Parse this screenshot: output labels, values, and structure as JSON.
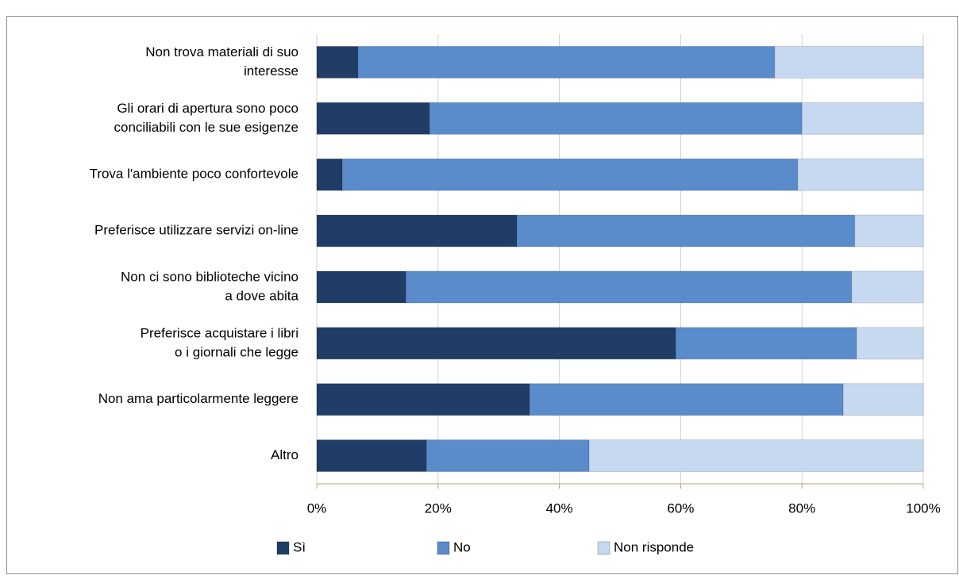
{
  "chart_data": {
    "type": "stacked-bar-horizontal",
    "categories": [
      [
        "Non trova materiali di suo",
        "interesse"
      ],
      [
        "Gli orari di apertura sono poco",
        "conciliabili con le sue esigenze"
      ],
      [
        "Trova l'ambiente poco confortevole"
      ],
      [
        "Preferisce utilizzare servizi on-line"
      ],
      [
        "Non ci sono biblioteche vicino",
        "a dove abita"
      ],
      [
        "Preferisce acquistare i libri",
        "o i giornali che legge"
      ],
      [
        "Non ama particolarmente leggere"
      ],
      [
        "Altro"
      ]
    ],
    "series": [
      {
        "name": "Sì",
        "color": "#1f3d66",
        "values": [
          6.8,
          18.6,
          4.2,
          33.0,
          14.7,
          59.2,
          35.1,
          18.1
        ]
      },
      {
        "name": "No",
        "color": "#5a8bcb",
        "values": [
          68.7,
          61.4,
          75.1,
          55.7,
          73.5,
          29.8,
          51.7,
          26.8
        ]
      },
      {
        "name": "Non risponde",
        "color": "#c6d9f1",
        "values": [
          24.5,
          20.0,
          20.7,
          11.3,
          11.8,
          11.0,
          13.2,
          55.1
        ]
      }
    ],
    "xlim": [
      0,
      100
    ],
    "xticks": [
      {
        "value": 0,
        "label": "0%"
      },
      {
        "value": 20,
        "label": "20%"
      },
      {
        "value": 40,
        "label": "40%"
      },
      {
        "value": 60,
        "label": "60%"
      },
      {
        "value": 80,
        "label": "80%"
      },
      {
        "value": 100,
        "label": "100%"
      }
    ],
    "grid": true
  }
}
